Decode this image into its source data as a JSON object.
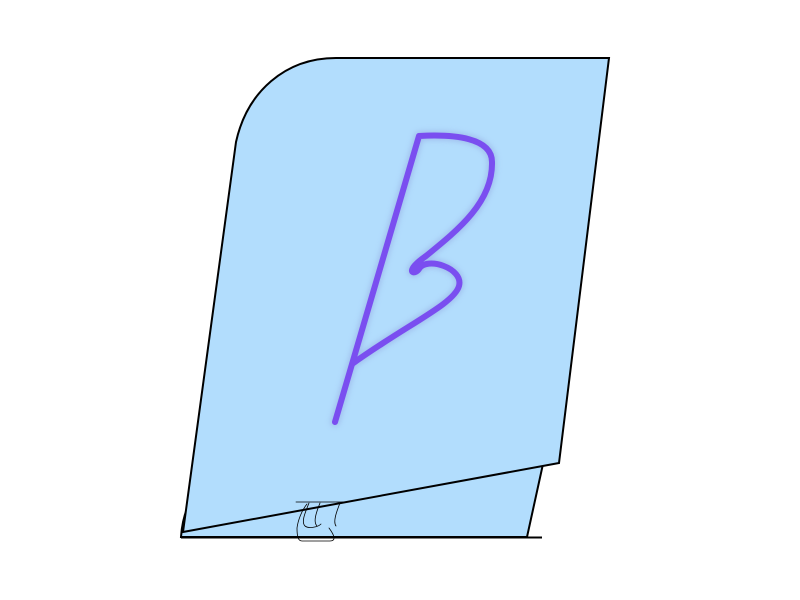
{
  "colors": {
    "background": "#ffffff",
    "book_fill": "#b2ddfd",
    "outline": "#000000",
    "glyph_stroke": "#7a4ef0",
    "glyph_glow": "#9bb6e8"
  },
  "icons": {
    "book": "book-icon",
    "glyph": "beta-glyph-icon",
    "page_marks": "page-mark-icon"
  }
}
